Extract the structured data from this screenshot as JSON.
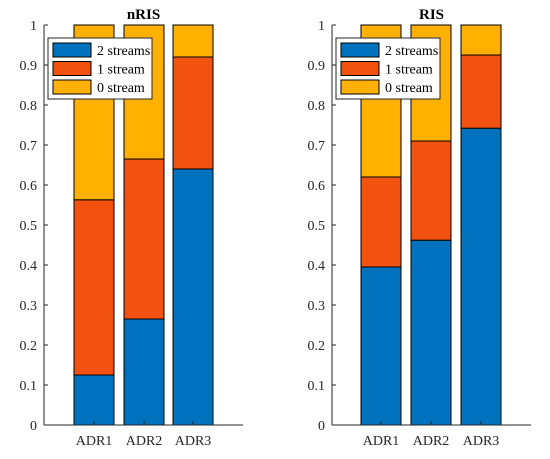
{
  "chart_data": [
    {
      "type": "bar",
      "stacked": true,
      "title": "nRIS",
      "categories": [
        "ADR1",
        "ADR2",
        "ADR3"
      ],
      "series": [
        {
          "name": "2 streams",
          "color": "#0072BD",
          "values": [
            0.125,
            0.265,
            0.64
          ]
        },
        {
          "name": "1 stream",
          "color": "#F2520F",
          "values": [
            0.438,
            0.4,
            0.28
          ]
        },
        {
          "name": "0 stream",
          "color": "#FFB000",
          "values": [
            0.437,
            0.335,
            0.08
          ]
        }
      ],
      "ylim": [
        0,
        1
      ],
      "yticks": [
        "0",
        "0.1",
        "0.2",
        "0.3",
        "0.4",
        "0.5",
        "0.6",
        "0.7",
        "0.8",
        "0.9",
        "1"
      ],
      "grid": false,
      "legend_position": "top-left"
    },
    {
      "type": "bar",
      "stacked": true,
      "title": "RIS",
      "categories": [
        "ADR1",
        "ADR2",
        "ADR3"
      ],
      "series": [
        {
          "name": "2 streams",
          "color": "#0072BD",
          "values": [
            0.395,
            0.462,
            0.742
          ]
        },
        {
          "name": "1 stream",
          "color": "#F2520F",
          "values": [
            0.225,
            0.248,
            0.183
          ]
        },
        {
          "name": "0 stream",
          "color": "#FFB000",
          "values": [
            0.38,
            0.29,
            0.075
          ]
        }
      ],
      "ylim": [
        0,
        1
      ],
      "yticks": [
        "0",
        "0.1",
        "0.2",
        "0.3",
        "0.4",
        "0.5",
        "0.6",
        "0.7",
        "0.8",
        "0.9",
        "1"
      ],
      "grid": false,
      "legend_position": "top-left"
    }
  ]
}
